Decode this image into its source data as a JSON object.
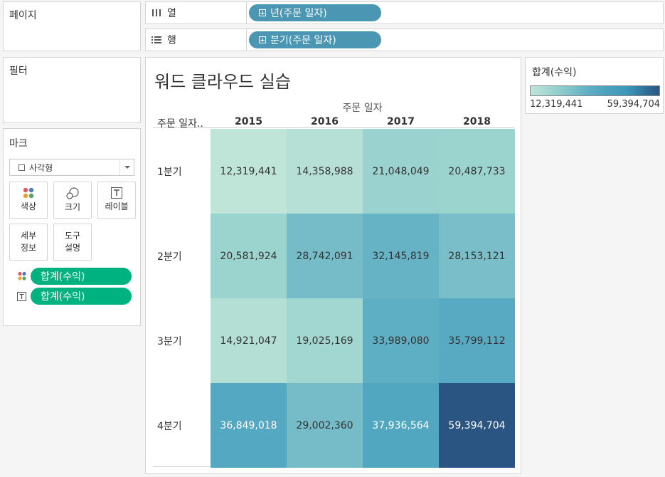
{
  "pages_panel": {
    "title": "페이지"
  },
  "columns_shelf": {
    "label": "열",
    "pill": "년(주문 일자)"
  },
  "rows_shelf": {
    "label": "행",
    "pill": "분기(주문 일자)"
  },
  "filters_panel": {
    "title": "필터"
  },
  "marks_panel": {
    "title": "마크",
    "mark_type": "사각형",
    "buttons": {
      "color": "색상",
      "size": "크기",
      "label": "레이블",
      "detail_line1": "세부",
      "detail_line2": "정보",
      "tooltip_line1": "도구",
      "tooltip_line2": "설명"
    },
    "fields": [
      {
        "encoding": "color",
        "field": "합계(수익)"
      },
      {
        "encoding": "text",
        "field": "합계(수익)"
      }
    ]
  },
  "legend": {
    "title": "합계(수익)",
    "min_label": "12,319,441",
    "max_label": "59,394,704",
    "color_low": "#bfe5d8",
    "color_high": "#2a5481"
  },
  "chart_data": {
    "type": "heatmap",
    "title": "워드 클라우드 실습",
    "column_header": "주문 일자",
    "row_header": "주문 일자..",
    "columns": [
      "2015",
      "2016",
      "2017",
      "2018"
    ],
    "rows": [
      "1분기",
      "2분기",
      "3분기",
      "4분기"
    ],
    "values": [
      [
        12319441,
        14358988,
        21048049,
        20487733
      ],
      [
        20581924,
        28742091,
        32145819,
        28153121
      ],
      [
        14921047,
        19025169,
        33989080,
        35799112
      ],
      [
        36849018,
        29002360,
        37936564,
        59394704
      ]
    ],
    "value_labels": [
      [
        "12,319,441",
        "14,358,988",
        "21,048,049",
        "20,487,733"
      ],
      [
        "20,581,924",
        "28,742,091",
        "32,145,819",
        "28,153,121"
      ],
      [
        "14,921,047",
        "19,025,169",
        "33,989,080",
        "35,799,112"
      ],
      [
        "36,849,018",
        "29,002,360",
        "37,936,564",
        "59,394,704"
      ]
    ],
    "color_range": [
      12319441,
      59394704
    ]
  }
}
